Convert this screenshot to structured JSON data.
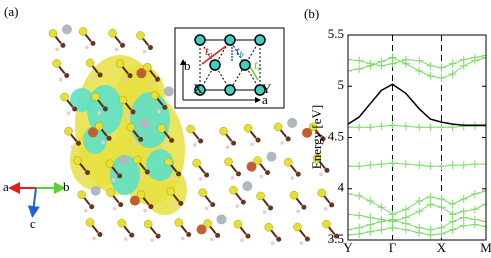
{
  "panel_a": {
    "label": "(a)",
    "axes": {
      "a": "a",
      "b": "b",
      "c": "c"
    },
    "inset": {
      "b": "b",
      "a": "a",
      "X": "X",
      "Y": "Y",
      "ta": {
        "t": "t",
        "sub": "a"
      },
      "tb": {
        "t": "t",
        "sub": "b"
      },
      "tc": {
        "t": "t",
        "sub": "c"
      }
    }
  },
  "chart_data": {
    "type": "line",
    "title": "(b)",
    "y_label": "Energy [eV]",
    "x": [
      0,
      0.25,
      0.5,
      0.75,
      1,
      1.3,
      1.6,
      1.85,
      2.1,
      2.35,
      2.6,
      2.85,
      3.1
    ],
    "xlim": [
      0,
      3.1
    ],
    "xticks": [
      {
        "value": 0,
        "label": "Y"
      },
      {
        "value": 1,
        "label": "Γ"
      },
      {
        "value": 2.1,
        "label": "X"
      },
      {
        "value": 3.1,
        "label": "M"
      }
    ],
    "ylim": [
      3.5,
      5.5
    ],
    "yticks": [
      3.5,
      4,
      4.5,
      5,
      5.5
    ],
    "series": [
      {
        "color": "#7fdc6a",
        "values": [
          5.26,
          5.25,
          5.22,
          5.2,
          5.22,
          5.26,
          5.25,
          5.2,
          5.18,
          5.22,
          5.26,
          5.28,
          5.3
        ]
      },
      {
        "color": "#7fdc6a",
        "values": [
          5.15,
          5.17,
          5.2,
          5.24,
          5.28,
          5.22,
          5.15,
          5.1,
          5.08,
          5.12,
          5.2,
          5.25,
          5.28
        ]
      },
      {
        "color": "#7fdc6a",
        "values": [
          4.6,
          4.6,
          4.6,
          4.61,
          4.62,
          4.61,
          4.6,
          4.6,
          4.6,
          4.6,
          4.61,
          4.61,
          4.61
        ]
      },
      {
        "color": "#7fdc6a",
        "values": [
          4.22,
          4.22,
          4.23,
          4.24,
          4.25,
          4.24,
          4.23,
          4.22,
          4.22,
          4.23,
          4.23,
          4.24,
          4.24
        ]
      },
      {
        "color": "#7fdc6a",
        "values": [
          3.95,
          3.93,
          3.88,
          3.82,
          3.75,
          3.8,
          3.88,
          3.92,
          3.9,
          3.85,
          3.9,
          3.95,
          3.98
        ]
      },
      {
        "color": "#7fdc6a",
        "values": [
          3.75,
          3.74,
          3.72,
          3.7,
          3.68,
          3.72,
          3.78,
          3.85,
          3.82,
          3.75,
          3.78,
          3.8,
          3.85
        ]
      },
      {
        "color": "#7fdc6a",
        "values": [
          3.6,
          3.62,
          3.65,
          3.68,
          3.7,
          3.66,
          3.62,
          3.6,
          3.62,
          3.68,
          3.72,
          3.7,
          3.68
        ]
      },
      {
        "color": "#7fdc6a",
        "values": [
          3.55,
          3.56,
          3.58,
          3.6,
          3.62,
          3.6,
          3.57,
          3.55,
          3.56,
          3.6,
          3.64,
          3.65,
          3.63
        ]
      },
      {
        "color": "#000000",
        "values": [
          4.63,
          4.7,
          4.83,
          4.96,
          5.02,
          4.93,
          4.78,
          4.68,
          4.65,
          4.63,
          4.62,
          4.62,
          4.62
        ]
      }
    ]
  }
}
